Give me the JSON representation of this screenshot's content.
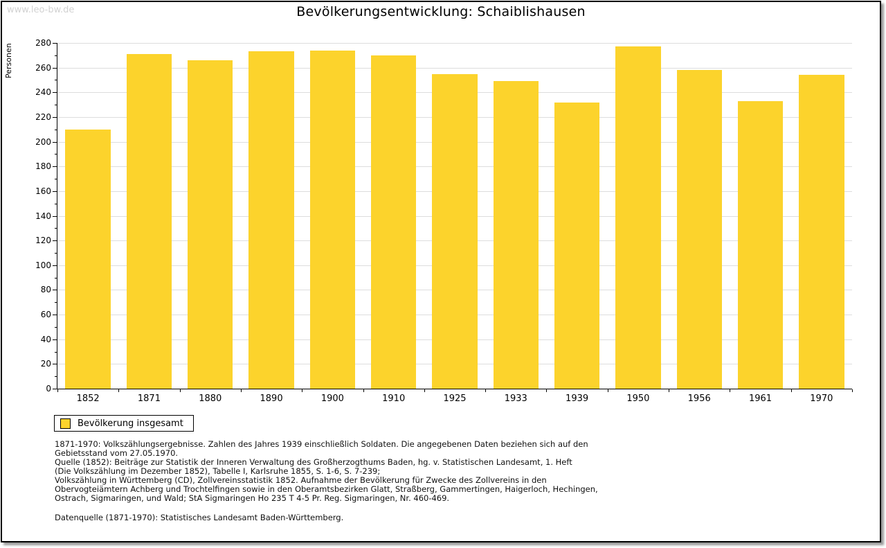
{
  "watermark": "www.leo-bw.de",
  "title": "Bevölkerungsentwicklung: Schaiblishausen",
  "chart_data": {
    "type": "bar",
    "title": "Bevölkerungsentwicklung: Schaiblishausen",
    "categories": [
      "1852",
      "1871",
      "1880",
      "1890",
      "1900",
      "1910",
      "1925",
      "1933",
      "1939",
      "1950",
      "1956",
      "1961",
      "1970"
    ],
    "values": [
      210,
      271,
      266,
      273,
      274,
      270,
      255,
      249,
      232,
      277,
      258,
      233,
      254
    ],
    "series_name": "Bevölkerung insgesamt",
    "xlabel": "",
    "ylabel": "Personen",
    "ylim": [
      0,
      280
    ],
    "ytick_step": 20,
    "yminor_step": 10,
    "grid": true,
    "legend_position": "bottom-left",
    "bar_color": "#FCD32C",
    "gridline_color": "#DDDDDD",
    "axis_color": "#000000"
  },
  "legend": {
    "label": "Bevölkerung insgesamt"
  },
  "footnotes": {
    "lines": [
      "1871-1970: Volkszählungsergebnisse. Zahlen des Jahres 1939 einschließlich Soldaten. Die angegebenen Daten beziehen sich auf den",
      "Gebietsstand vom 27.05.1970.",
      "Quelle (1852): Beiträge zur Statistik der Inneren Verwaltung des Großherzogthums Baden, hg. v. Statistischen Landesamt, 1. Heft",
      "(Die Volkszählung im Dezember 1852), Tabelle I, Karlsruhe 1855, S. 1-6, S. 7-239;",
      "Volkszählung in Württemberg (CD), Zollvereinsstatistik 1852. Aufnahme der Bevölkerung für Zwecke des Zollvereins in den",
      "Obervogteiämtern Achberg und Trochtelfingen sowie in den Oberamtsbezirken Glatt, Straßberg, Gammertingen, Haigerloch, Hechingen,",
      "Ostrach, Sigmaringen, und Wald; StA Sigmaringen Ho 235 T 4-5 Pr. Reg. Sigmaringen, Nr. 460-469."
    ],
    "datasource": "Datenquelle (1871-1970): Statistisches Landesamt Baden-Württemberg."
  }
}
